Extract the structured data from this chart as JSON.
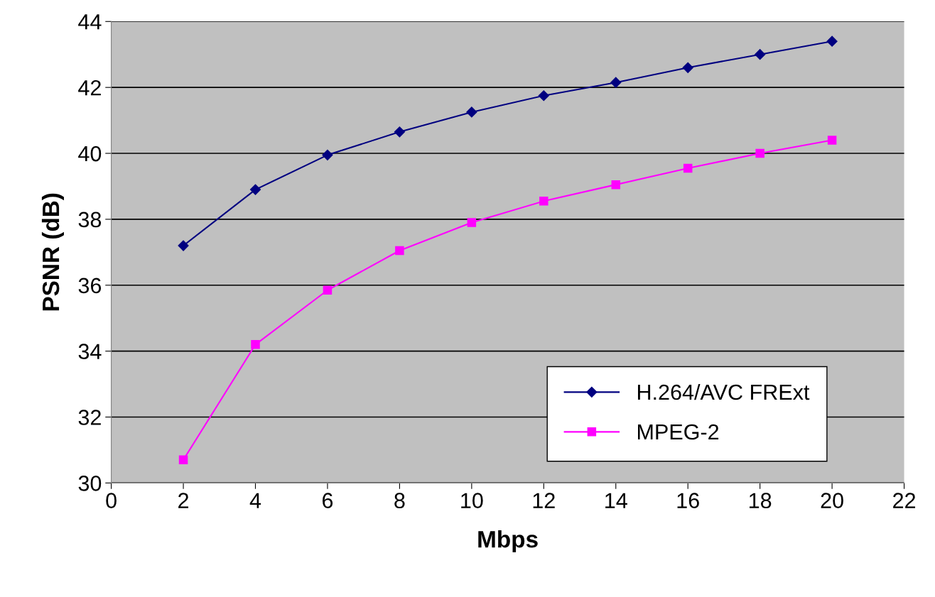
{
  "chart_data": {
    "type": "line",
    "xlabel": "Mbps",
    "ylabel": "PSNR (dB)",
    "x": [
      2,
      4,
      6,
      8,
      10,
      12,
      14,
      16,
      18,
      20
    ],
    "series": [
      {
        "name": "H.264/AVC FRExt",
        "color": "#000080",
        "marker": "diamond",
        "values": [
          37.2,
          38.9,
          39.95,
          40.65,
          41.25,
          41.75,
          42.15,
          42.6,
          43.0,
          43.4
        ]
      },
      {
        "name": "MPEG-2",
        "color": "#ff00ff",
        "marker": "square",
        "values": [
          30.7,
          34.2,
          35.85,
          37.05,
          37.9,
          38.55,
          39.05,
          39.55,
          40.0,
          40.4
        ]
      }
    ],
    "xlim": [
      0,
      22
    ],
    "xticks": [
      0,
      2,
      4,
      6,
      8,
      10,
      12,
      14,
      16,
      18,
      20,
      22
    ],
    "ylim": [
      30,
      44
    ],
    "yticks": [
      30,
      32,
      34,
      36,
      38,
      40,
      42,
      44
    ],
    "grid": "y",
    "legend": "bottom right",
    "line_style": "solid"
  }
}
